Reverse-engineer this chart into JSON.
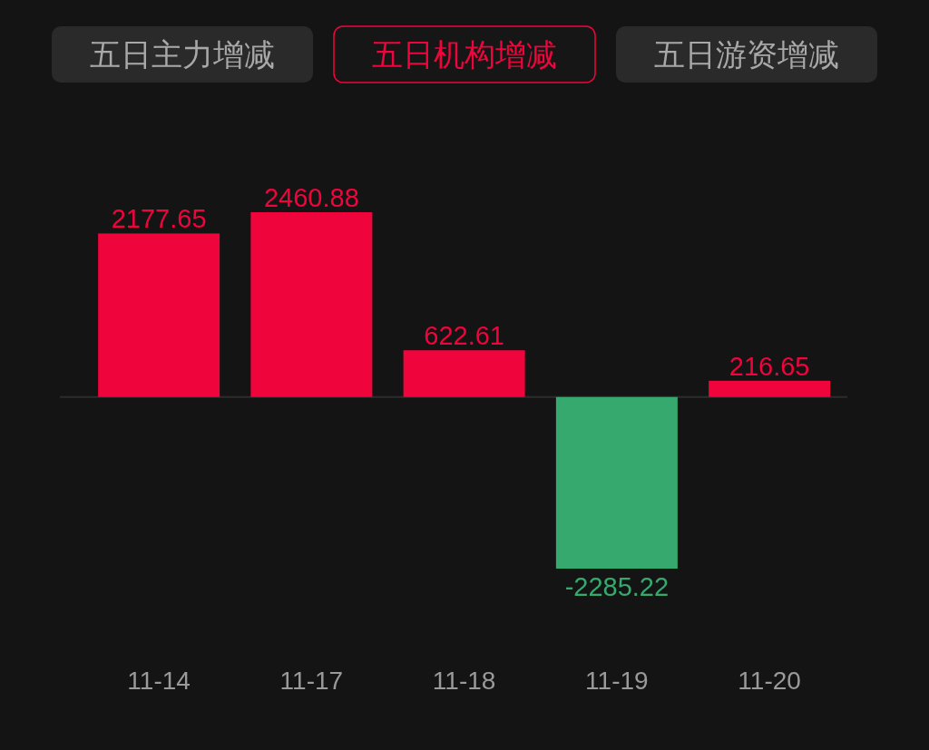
{
  "chart_data": {
    "type": "bar",
    "title": "五日机构增减",
    "annotations": [
      "五日主力增减",
      "五日游资增减"
    ],
    "categories": [
      "11-14",
      "11-17",
      "11-18",
      "11-19",
      "11-20"
    ],
    "values": [
      2177.65,
      2460.88,
      622.61,
      -2285.22,
      216.65
    ],
    "colors": [
      "#f0043c",
      "#f0043c",
      "#f0043c",
      "#36aa6e",
      "#f0043c"
    ],
    "data_labels": true
  }
}
